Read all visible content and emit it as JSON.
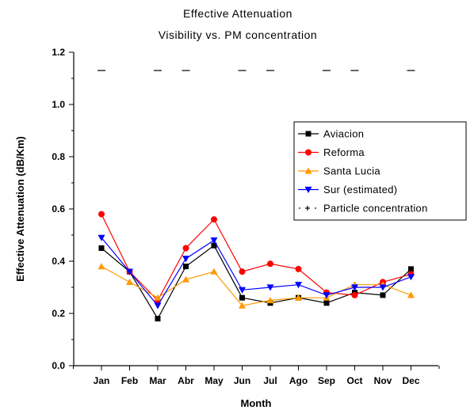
{
  "chart_data": {
    "type": "line",
    "title": "Effective Attenuation",
    "subtitle": "Visibility vs. PM concentration",
    "xlabel": "Month",
    "ylabel": "Effective Attenuation (dB/Km)",
    "categories": [
      "Jan",
      "Feb",
      "Mar",
      "Abr",
      "May",
      "Jun",
      "Jul",
      "Ago",
      "Sep",
      "Oct",
      "Nov",
      "Dec"
    ],
    "ylim": [
      0.0,
      1.2
    ],
    "yticks": [
      "0.0",
      "0.2",
      "0.4",
      "0.6",
      "0.8",
      "1.0",
      "1.2"
    ],
    "grid": false,
    "legend_position": "right",
    "series": [
      {
        "name": "Aviacion",
        "color": "#000000",
        "marker": "square",
        "values": [
          0.45,
          0.36,
          0.18,
          0.38,
          0.46,
          0.26,
          0.24,
          0.26,
          0.24,
          0.28,
          0.27,
          0.37
        ]
      },
      {
        "name": "Reforma",
        "color": "#ff0000",
        "marker": "circle",
        "values": [
          0.58,
          0.36,
          0.25,
          0.45,
          0.56,
          0.36,
          0.39,
          0.37,
          0.28,
          0.27,
          0.32,
          0.35
        ]
      },
      {
        "name": "Santa Lucia",
        "color": "#ff9900",
        "marker": "triangle-up",
        "values": [
          0.38,
          0.32,
          0.26,
          0.33,
          0.36,
          0.23,
          0.25,
          0.26,
          0.26,
          0.31,
          0.31,
          0.27
        ]
      },
      {
        "name": "Sur (estimated)",
        "color": "#0000ff",
        "marker": "triangle-down",
        "values": [
          0.49,
          0.36,
          0.23,
          0.41,
          0.48,
          0.29,
          0.3,
          0.31,
          0.27,
          0.3,
          0.3,
          0.34
        ]
      },
      {
        "name": "Particle concentration",
        "color": "#000000",
        "marker": "dash",
        "values": [
          1.13,
          null,
          1.13,
          1.13,
          null,
          1.13,
          1.13,
          null,
          1.13,
          1.13,
          null,
          1.13
        ]
      }
    ]
  }
}
